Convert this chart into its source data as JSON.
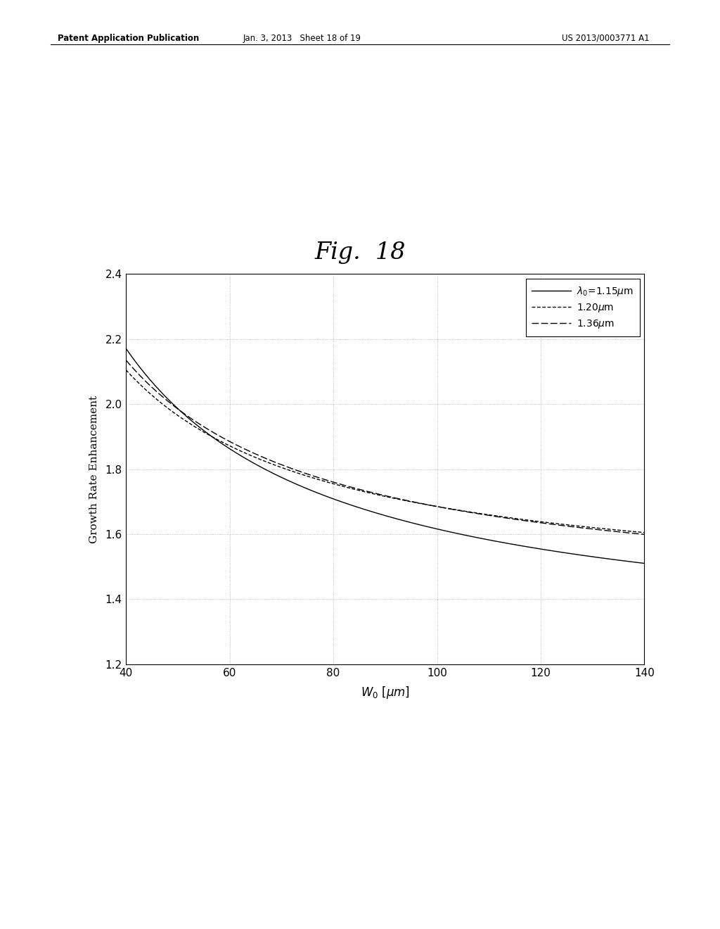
{
  "title": "Fig.  18",
  "ylabel": "Growth Rate Enhancement",
  "xmin": 40,
  "xmax": 140,
  "ymin": 1.2,
  "ymax": 2.4,
  "yticks": [
    1.2,
    1.4,
    1.6,
    1.8,
    2.0,
    2.2,
    2.4
  ],
  "xticks": [
    40,
    60,
    80,
    100,
    120,
    140
  ],
  "background_color": "#ffffff",
  "line_color": "#000000",
  "header_left": "Patent Application Publication",
  "header_mid": "Jan. 3, 2013   Sheet 18 of 19",
  "header_right": "US 2013/0003771 A1",
  "curve1_A": 37.0,
  "curve1_C": 1.246,
  "curve2_A": 28.0,
  "curve2_C": 1.405,
  "curve3_A": 30.0,
  "curve3_C": 1.385
}
